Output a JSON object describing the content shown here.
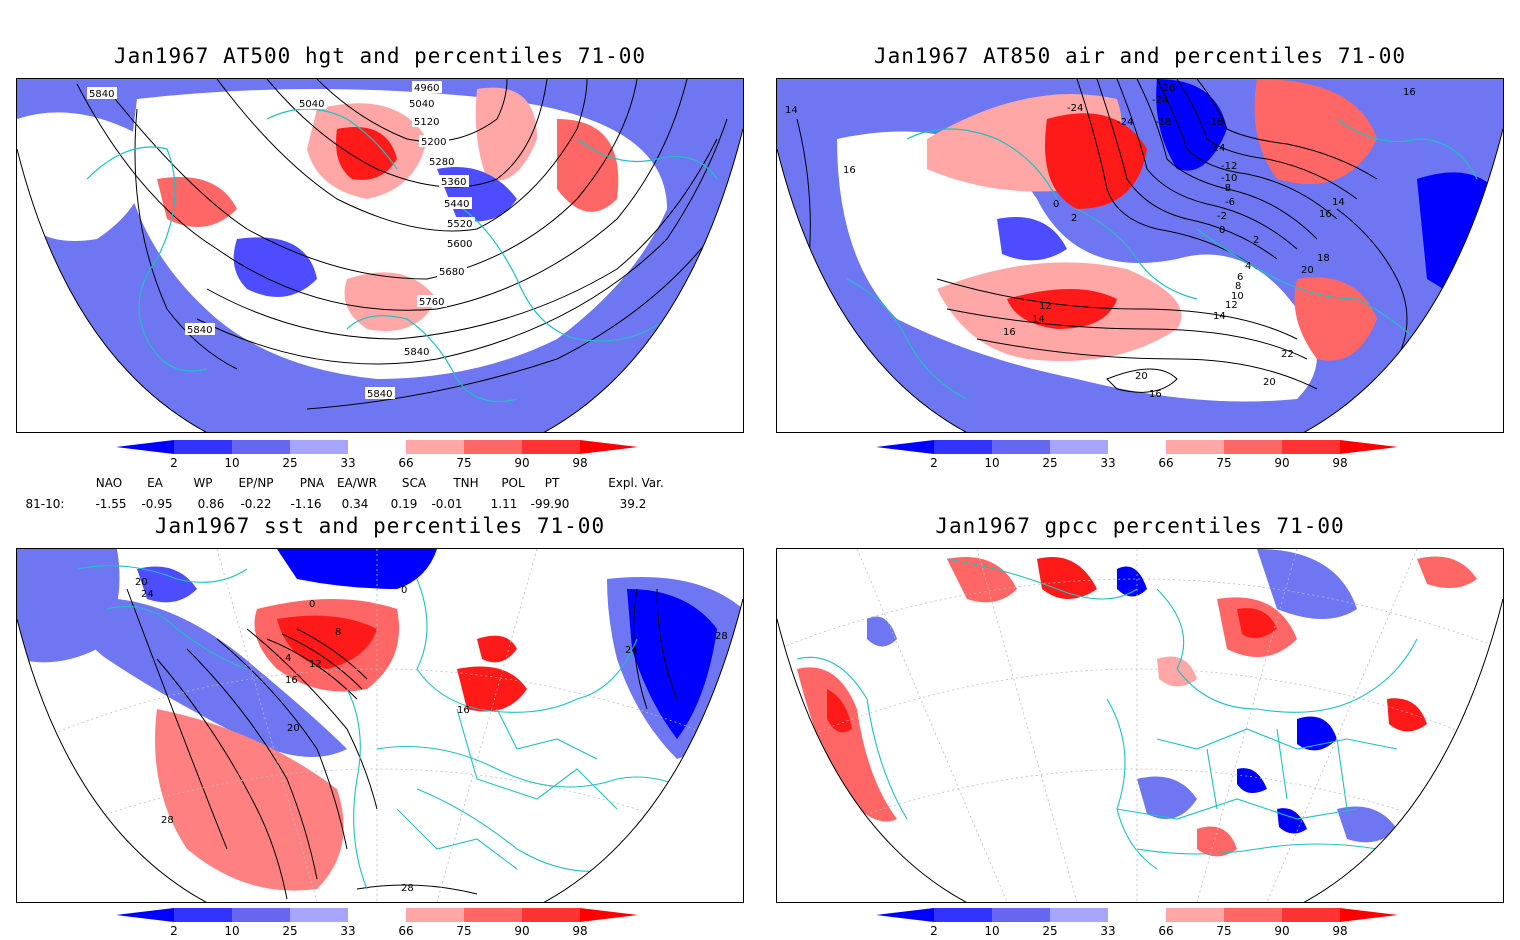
{
  "panels": [
    {
      "title": "Jan1967 AT500 hgt and percentiles 71-00",
      "contour_labels": [
        "5840",
        "5040",
        "4960",
        "5040",
        "5120",
        "5200",
        "5280",
        "5360",
        "5440",
        "5520",
        "5600",
        "5680",
        "5760",
        "5840",
        "5840",
        "5840"
      ]
    },
    {
      "title": "Jan1967 AT850 air and percentiles 71-00",
      "contour_labels": [
        "14",
        "16",
        "-24",
        "-26",
        "-24",
        "-24",
        "-18",
        "-18",
        "-14",
        "-12",
        "-10",
        "-8",
        "-6",
        "-2",
        "0",
        "2",
        "4",
        "6",
        "8",
        "10",
        "12",
        "14",
        "16",
        "18",
        "20",
        "22",
        "20",
        "16",
        "14",
        "16",
        "12",
        "14",
        "16",
        "20",
        "2",
        "0"
      ]
    },
    {
      "title": "Jan1967 sst and percentiles 71-00",
      "contour_labels": [
        "24",
        "20",
        "0",
        "0",
        "4",
        "8",
        "12",
        "16",
        "20",
        "24",
        "28",
        "28",
        "28",
        "16"
      ]
    },
    {
      "title": "Jan1967 gpcc percentiles 71-00",
      "contour_labels": []
    }
  ],
  "colorbar": {
    "labels": [
      "2",
      "10",
      "25",
      "33",
      "66",
      "75",
      "90",
      "98"
    ],
    "colors": [
      "#0000ff",
      "#3333ff",
      "#6666f0",
      "#a6a6ff",
      "#ffffff",
      "#ffa6a6",
      "#ff6666",
      "#ff3333",
      "#ff0000"
    ]
  },
  "indices": {
    "row_label": "81-10:",
    "headers": [
      "NAO",
      "EA",
      "WP",
      "EP/NP",
      "PNA",
      "EA/WR",
      "SCA",
      "TNH",
      "POL",
      "PT",
      "Expl. Var."
    ],
    "values": [
      "-1.55",
      "-0.95",
      "0.86",
      "-0.22",
      "-1.16",
      "0.34",
      "0.19",
      "-0.01",
      "1.11",
      "-99.90",
      "39.2"
    ]
  },
  "colors": {
    "coastline": "#1fc0c0",
    "contour": "#000000",
    "blue_strong": "#0000ff",
    "blue_mid": "#4d4dff",
    "blue_light": "#6f76f2",
    "blue_pale": "#a6a6ff",
    "red_pale": "#ffa6a6",
    "red_mid": "#ff6666",
    "red_strong": "#ff1a1a"
  }
}
